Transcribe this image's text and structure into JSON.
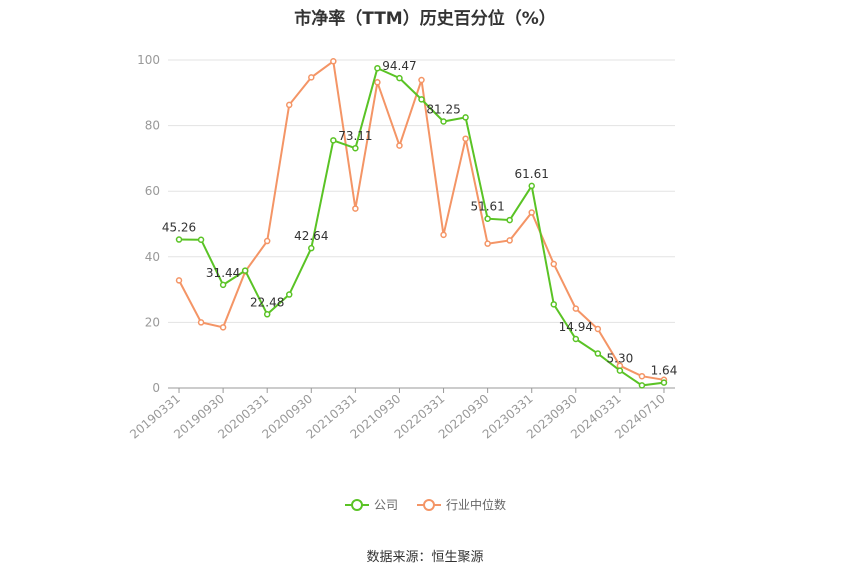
{
  "title": "市净率（TTM）历史百分位（%）",
  "source": "数据来源：恒生聚源",
  "chart_data": {
    "type": "line",
    "x": [
      "20190331",
      "20190630",
      "20190930",
      "20191231",
      "20200331",
      "20200630",
      "20200930",
      "20201231",
      "20210331",
      "20210630",
      "20210930",
      "20211231",
      "20220331",
      "20220630",
      "20220930",
      "20221231",
      "20230331",
      "20230630",
      "20230930",
      "20231231",
      "20240331",
      "20240630",
      "20240710"
    ],
    "x_tick_labels": [
      "20190331",
      "20190930",
      "20200331",
      "20200930",
      "20210331",
      "20210930",
      "20220331",
      "20220930",
      "20230331",
      "20230930",
      "20240331",
      "20240710"
    ],
    "ylim": [
      0,
      100
    ],
    "y_ticks": [
      0,
      20,
      40,
      60,
      80,
      100
    ],
    "grid": true,
    "legend_position": "bottom",
    "series": [
      {
        "name": "公司",
        "color": "#5ac325",
        "values": [
          45.26,
          45.2,
          31.44,
          35.8,
          22.48,
          28.5,
          42.64,
          75.5,
          73.11,
          97.5,
          94.47,
          88.0,
          81.25,
          82.5,
          51.61,
          51.2,
          61.61,
          25.5,
          14.94,
          10.5,
          5.3,
          0.8,
          1.64
        ],
        "labels": {
          "0": "45.26",
          "2": "31.44",
          "4": "22.48",
          "6": "42.64",
          "8": "73.11",
          "10": "94.47",
          "12": "81.25",
          "14": "51.61",
          "16": "61.61",
          "18": "14.94",
          "20": "5.30",
          "22": "1.64"
        }
      },
      {
        "name": "行业中位数",
        "color": "#f49566",
        "values": [
          32.8,
          20.0,
          18.5,
          35.5,
          44.8,
          86.3,
          94.7,
          99.6,
          54.7,
          93.2,
          73.9,
          93.9,
          46.7,
          76.0,
          44.0,
          45.0,
          53.5,
          37.8,
          24.2,
          18.0,
          6.8,
          3.6,
          2.5
        ]
      }
    ]
  }
}
